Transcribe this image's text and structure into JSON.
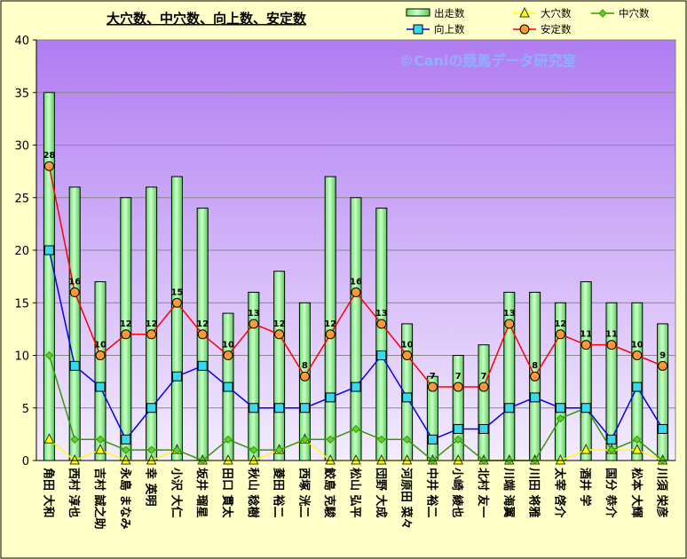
{
  "chart_data": {
    "type": "bar",
    "title": "大穴数、中穴数、向上数、安定数",
    "watermark": "©Caniの競馬データ研究室",
    "ylim": [
      0,
      40
    ],
    "yticks": [
      0,
      5,
      10,
      15,
      20,
      25,
      30,
      35,
      40
    ],
    "categories": [
      "角田 大和",
      "西村 淳也",
      "吉村 誠之助",
      "永島 まなみ",
      "幸 英明",
      "小沢 大仁",
      "坂井 瑠星",
      "田口 貫太",
      "秋山 稔樹",
      "菱田 裕二",
      "西塚 洸二",
      "鮫島 克駿",
      "松山 弘平",
      "団野 大成",
      "河原田 菜々",
      "中井 裕二",
      "小崎 綾也",
      "北村 友一",
      "川端 海翼",
      "川田 将雅",
      "太宰 啓介",
      "酒井 学",
      "国分 恭介",
      "松本 大輝",
      "川須 栄彦"
    ],
    "series": [
      {
        "name": "出走数",
        "kind": "bar",
        "color": "#99ff99",
        "values": [
          35,
          26,
          17,
          25,
          26,
          27,
          24,
          14,
          16,
          18,
          15,
          27,
          25,
          24,
          13,
          8,
          10,
          11,
          16,
          16,
          15,
          17,
          15,
          15,
          13
        ]
      },
      {
        "name": "大穴数",
        "kind": "line",
        "color": "#ffff00",
        "marker": "triangle",
        "values": [
          2,
          0,
          1,
          0,
          0,
          1,
          0,
          0,
          0,
          1,
          2,
          0,
          0,
          0,
          0,
          0,
          0,
          0,
          0,
          0,
          0,
          1,
          1,
          1,
          0
        ]
      },
      {
        "name": "中穴数",
        "kind": "line",
        "color": "#339900",
        "marker": "diamond",
        "values": [
          10,
          2,
          2,
          1,
          1,
          1,
          0,
          2,
          1,
          1,
          2,
          2,
          3,
          2,
          2,
          0,
          2,
          0,
          0,
          0,
          4,
          5,
          1,
          2,
          0
        ]
      },
      {
        "name": "向上数",
        "kind": "line",
        "color": "#0000ee",
        "marker": "square",
        "values": [
          20,
          9,
          7,
          2,
          5,
          8,
          9,
          7,
          5,
          5,
          5,
          6,
          7,
          10,
          6,
          2,
          3,
          3,
          5,
          6,
          5,
          5,
          2,
          7,
          3
        ]
      },
      {
        "name": "安定数",
        "kind": "line",
        "color": "#ff0000",
        "marker": "circle",
        "values": [
          28,
          16,
          10,
          12,
          12,
          15,
          12,
          10,
          13,
          12,
          8,
          12,
          16,
          13,
          10,
          7,
          7,
          7,
          13,
          8,
          12,
          11,
          11,
          10,
          9
        ]
      }
    ],
    "labels_series": "安定数",
    "legend_position": "top-right",
    "grid": true
  }
}
